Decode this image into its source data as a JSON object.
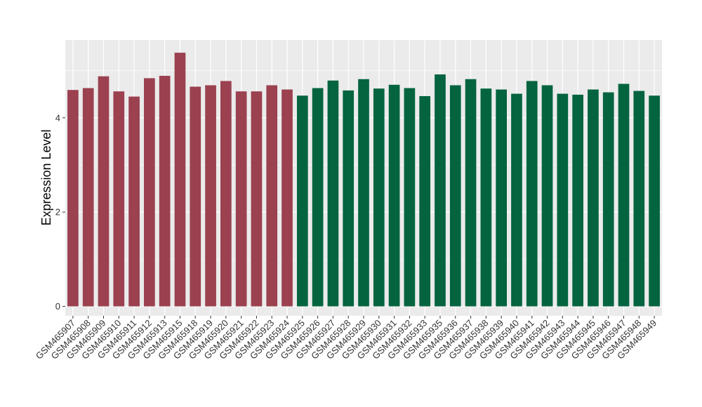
{
  "chart_data": {
    "type": "bar",
    "title": "",
    "xlabel": "",
    "ylabel": "Expression Level",
    "ylim": [
      -0.2,
      5.65
    ],
    "yticks": [
      0,
      2,
      4
    ],
    "grid": true,
    "legend": "none",
    "colors": {
      "group_a": "#9b4150",
      "group_b": "#046440",
      "panel": "#ebebeb",
      "grid": "#ffffff"
    },
    "categories": [
      "GSM465907",
      "GSM465908",
      "GSM465909",
      "GSM465910",
      "GSM465911",
      "GSM465912",
      "GSM465913",
      "GSM465915",
      "GSM465918",
      "GSM465919",
      "GSM465920",
      "GSM465921",
      "GSM465922",
      "GSM465923",
      "GSM465924",
      "GSM465925",
      "GSM465926",
      "GSM465927",
      "GSM465928",
      "GSM465929",
      "GSM465930",
      "GSM465931",
      "GSM465932",
      "GSM465933",
      "GSM465935",
      "GSM465936",
      "GSM465937",
      "GSM465938",
      "GSM465939",
      "GSM465940",
      "GSM465941",
      "GSM465942",
      "GSM465943",
      "GSM465944",
      "GSM465945",
      "GSM465946",
      "GSM465947",
      "GSM465948",
      "GSM465949"
    ],
    "values": [
      4.59,
      4.63,
      4.88,
      4.56,
      4.45,
      4.84,
      4.89,
      5.38,
      4.66,
      4.69,
      4.78,
      4.56,
      4.56,
      4.69,
      4.6,
      4.47,
      4.63,
      4.79,
      4.58,
      4.82,
      4.62,
      4.7,
      4.63,
      4.46,
      4.92,
      4.69,
      4.82,
      4.62,
      4.6,
      4.51,
      4.78,
      4.69,
      4.51,
      4.49,
      4.6,
      4.54,
      4.72,
      4.57,
      4.47
    ],
    "group": [
      "a",
      "a",
      "a",
      "a",
      "a",
      "a",
      "a",
      "a",
      "a",
      "a",
      "a",
      "a",
      "a",
      "a",
      "a",
      "b",
      "b",
      "b",
      "b",
      "b",
      "b",
      "b",
      "b",
      "b",
      "b",
      "b",
      "b",
      "b",
      "b",
      "b",
      "b",
      "b",
      "b",
      "b",
      "b",
      "b",
      "b",
      "b",
      "b"
    ]
  }
}
